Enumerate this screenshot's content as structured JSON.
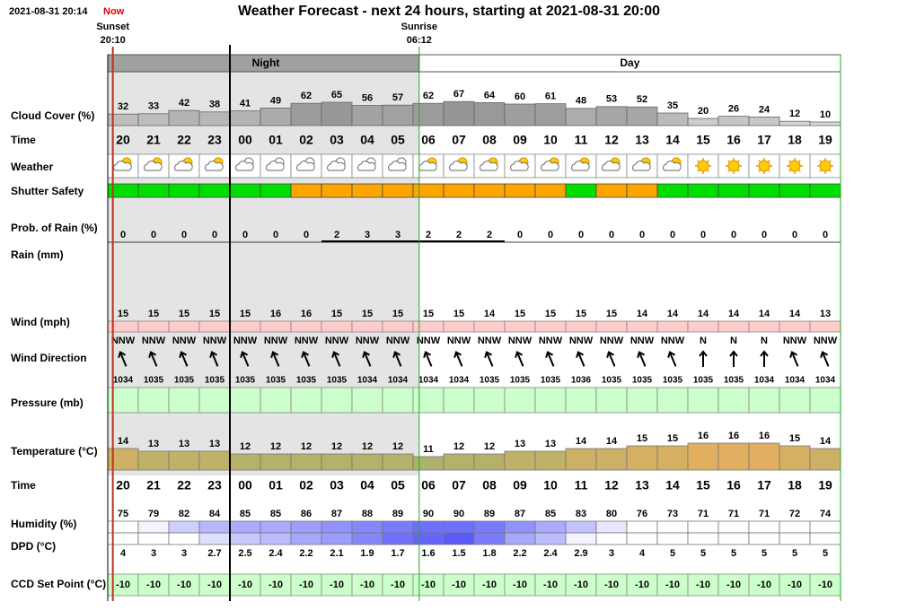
{
  "header": {
    "timestamp": "2021-08-31 20:14",
    "now": "Now",
    "title": "Weather Forecast - next 24 hours, starting at 2021-08-31 20:00"
  },
  "sun": {
    "sunset": {
      "label": "Sunset",
      "time": "20:10"
    },
    "sunrise": {
      "label": "Sunrise",
      "time": "06:12"
    }
  },
  "periods": {
    "night": "Night",
    "day": "Day"
  },
  "hours": [
    "20",
    "21",
    "22",
    "23",
    "00",
    "01",
    "02",
    "03",
    "04",
    "05",
    "06",
    "07",
    "08",
    "09",
    "10",
    "11",
    "12",
    "13",
    "14",
    "15",
    "16",
    "17",
    "18",
    "19"
  ],
  "rows": {
    "cloud_cover": {
      "label": "Cloud Cover (%)",
      "values": [
        32,
        33,
        42,
        38,
        41,
        49,
        62,
        65,
        56,
        57,
        62,
        67,
        64,
        60,
        61,
        48,
        53,
        52,
        35,
        20,
        26,
        24,
        12,
        10
      ]
    },
    "time": {
      "label": "Time"
    },
    "weather": {
      "label": "Weather"
    },
    "shutter_safety": {
      "label": "Shutter Safety",
      "colors": [
        "#00dd00",
        "#00dd00",
        "#00dd00",
        "#00dd00",
        "#00dd00",
        "#00dd00",
        "#ffa500",
        "#ffa500",
        "#ffa500",
        "#ffa500",
        "#ffa500",
        "#ffa500",
        "#ffa500",
        "#ffa500",
        "#ffa500",
        "#00dd00",
        "#ffa500",
        "#ffa500",
        "#00dd00",
        "#00dd00",
        "#00dd00",
        "#00dd00",
        "#00dd00",
        "#00dd00"
      ]
    },
    "rain_probability": {
      "label": "Prob. of Rain (%)",
      "values": [
        0,
        0,
        0,
        0,
        0,
        0,
        0,
        2,
        3,
        3,
        2,
        2,
        2,
        0,
        0,
        0,
        0,
        0,
        0,
        0,
        0,
        0,
        0,
        0
      ]
    },
    "rain": {
      "label": "Rain (mm)"
    },
    "wind": {
      "label": "Wind (mph)",
      "values": [
        15,
        15,
        15,
        15,
        15,
        16,
        16,
        15,
        15,
        15,
        15,
        15,
        14,
        15,
        15,
        15,
        15,
        14,
        14,
        14,
        14,
        14,
        14,
        13
      ]
    },
    "wind_direction": {
      "label": "Wind Direction",
      "values": [
        "NNW",
        "NNW",
        "NNW",
        "NNW",
        "NNW",
        "NNW",
        "NNW",
        "NNW",
        "NNW",
        "NNW",
        "NNW",
        "NNW",
        "NNW",
        "NNW",
        "NNW",
        "NNW",
        "NNW",
        "NNW",
        "NNW",
        "N",
        "N",
        "N",
        "NNW",
        "NNW"
      ]
    },
    "pressure": {
      "label": "Pressure (mb)",
      "values": [
        1034,
        1035,
        1035,
        1035,
        1035,
        1035,
        1035,
        1035,
        1034,
        1034,
        1034,
        1034,
        1035,
        1035,
        1035,
        1036,
        1035,
        1035,
        1035,
        1035,
        1035,
        1034,
        1034,
        1034
      ]
    },
    "temperature": {
      "label": "Temperature (°C)",
      "values": [
        14,
        13,
        13,
        13,
        12,
        12,
        12,
        12,
        12,
        12,
        11,
        12,
        12,
        13,
        13,
        14,
        14,
        15,
        15,
        16,
        16,
        16,
        15,
        14
      ]
    },
    "time_2": {
      "label": "Time"
    },
    "humidity": {
      "label": "Humidity (%)",
      "values": [
        75,
        79,
        82,
        84,
        85,
        85,
        86,
        87,
        88,
        89,
        90,
        90,
        89,
        87,
        85,
        83,
        80,
        76,
        73,
        71,
        71,
        71,
        72,
        74
      ]
    },
    "dpd": {
      "label": "DPD (°C)",
      "values": [
        4,
        3,
        3,
        2.7,
        2.5,
        2.4,
        2.2,
        2.1,
        1.9,
        1.7,
        1.6,
        1.5,
        1.8,
        2.2,
        2.4,
        2.9,
        3,
        4,
        5,
        5,
        5,
        5,
        5,
        5
      ]
    },
    "ccd_set_point": {
      "label": "CCD Set Point (°C)",
      "values": [
        -10,
        -10,
        -10,
        -10,
        -10,
        -10,
        -10,
        -10,
        -10,
        -10,
        -10,
        -10,
        -10,
        -10,
        -10,
        -10,
        -10,
        -10,
        -10,
        -10,
        -10,
        -10,
        -10,
        -10
      ]
    }
  }
}
